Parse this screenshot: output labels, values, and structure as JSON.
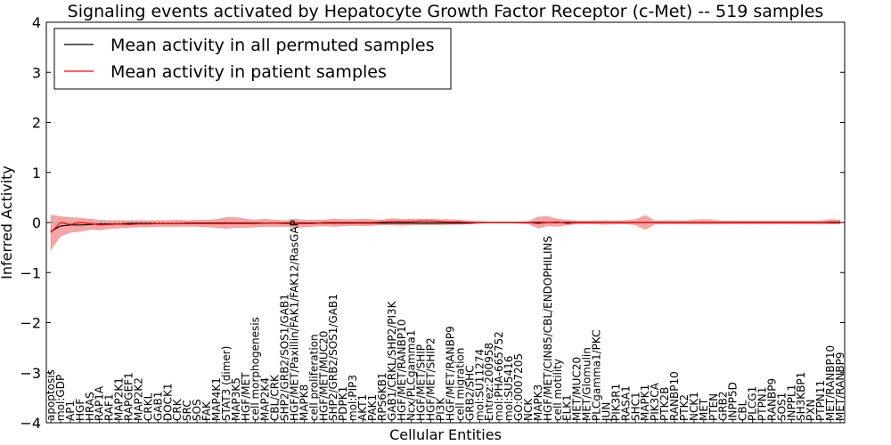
{
  "chart_data": {
    "type": "line",
    "title": "Signaling events activated by Hepatocyte Growth Factor Receptor (c-Met) -- 519 samples",
    "xlabel": "Cellular Entities",
    "ylabel": "Inferred Activity",
    "ylim": [
      -4,
      4
    ],
    "yticks": [
      "4",
      "3",
      "2",
      "1",
      "0",
      "−1",
      "−2",
      "−3",
      "−4"
    ],
    "legend": {
      "placement": "top-left",
      "entries": [
        "Mean activity in all permuted samples",
        "Mean activity in patient samples"
      ]
    },
    "colors": {
      "permuted": "#000000",
      "patient": "#ff0000",
      "band": "#f08080",
      "zero_line": "#808080"
    },
    "categories": [
      "apoptosis",
      "mol:GDP",
      "AP1",
      "HGF",
      "HRAS",
      "RAP1A",
      "RAF1",
      "MAP2K1",
      "RAPGEF1",
      "MAP2K2",
      "CRKL",
      "GAB1",
      "DOCK1",
      "CRK",
      "SRC",
      "SOS",
      "FAK",
      "MAP4K1",
      "STAT3 (dimer)",
      "MAP3K5",
      "HGF/MET",
      "cell morphogenesis",
      "MAP2K4",
      "CBL/CRK",
      "SHP2/GRB2/SOS1/GAB1",
      "HGF/MET/Paxillin/FAK1/FAK12/RasGAP",
      "MAPK8",
      "cell proliferation",
      "HGF/MET/MUC20",
      "SHP2/GRB2/SOS1/GAB1",
      "PDPK1",
      "mol:PIP3",
      "AKT1",
      "PAK1",
      "RPS6KB1",
      "GAB1/CRKL/SHP2/PI3K",
      "HGF/MET/RANBP10",
      "Ncx/PLCgamma1",
      "HGF/MET/SHIP",
      "HGF/MET/SHIP2",
      "PI3K",
      "HGF/MET/RANBP9",
      "cell migration",
      "GRB2/SHC",
      "mol:SU11274",
      "Entrez:200958",
      "mol:PHA-665752",
      "mol:SU5416",
      "GO:0007205",
      "NCK",
      "MAPK3",
      "HGF/MET/CIN85/CBL/ENDOPHILINS",
      "cell motility",
      "ELK1",
      "MET/MUC20",
      "MET/Glomulin",
      "PLCgamma1/PKC",
      "JUN",
      "PIK3R1",
      "RASA1",
      "SHC1",
      "MAPK1",
      "PIK3CA",
      "PTK2B",
      "RANBP10",
      "PTK2",
      "NCK1",
      "MET",
      "PTEN",
      "GRB2",
      "INPP5D",
      "CBL",
      "PLCG1",
      "PTPN1",
      "RANBP9",
      "SOS1",
      "INPPL1",
      "SH3KBP1",
      "PXN",
      "PTPN11",
      "MET/RANBP10",
      "MET/RANBP9"
    ],
    "series": [
      {
        "name": "Mean activity in all permuted samples",
        "values": [
          -0.18,
          -0.07,
          -0.05,
          -0.05,
          -0.04,
          -0.03,
          -0.03,
          -0.03,
          -0.02,
          -0.02,
          -0.02,
          -0.02,
          -0.02,
          -0.02,
          -0.01,
          -0.01,
          -0.01,
          -0.01,
          -0.01,
          -0.01,
          -0.01,
          -0.01,
          -0.01,
          -0.01,
          -0.01,
          -0.01,
          -0.01,
          -0.01,
          -0.01,
          -0.01,
          -0.01,
          -0.01,
          -0.01,
          -0.01,
          -0.01,
          -0.01,
          -0.01,
          -0.01,
          -0.01,
          -0.01,
          -0.01,
          -0.01,
          -0.01,
          -0.01,
          0,
          0,
          0,
          0,
          0,
          0,
          0,
          0,
          0,
          0,
          0,
          0,
          0,
          0,
          0,
          0,
          0,
          0,
          0,
          0,
          0,
          0,
          0,
          0,
          0,
          0,
          0,
          0,
          0,
          0,
          0,
          0,
          0,
          0,
          0,
          0,
          0,
          0
        ]
      },
      {
        "name": "Mean activity in patient samples",
        "values": [
          -0.2,
          0.0,
          -0.04,
          0.0,
          -0.02,
          -0.05,
          -0.04,
          -0.03,
          -0.04,
          -0.03,
          -0.03,
          -0.02,
          -0.02,
          -0.02,
          -0.02,
          -0.02,
          -0.02,
          -0.02,
          -0.02,
          -0.02,
          -0.02,
          -0.02,
          -0.01,
          -0.01,
          -0.02,
          -0.02,
          -0.02,
          -0.02,
          0.0,
          0.0,
          0.0,
          0.0,
          0.0,
          0.0,
          0.01,
          0.02,
          0.02,
          0.02,
          0.03,
          0.03,
          0.02,
          0.01,
          0.01,
          0.0,
          0.0,
          0.0,
          0.0,
          0.0,
          0.0,
          0.0,
          -0.02,
          0.0,
          0.01,
          -0.02,
          0.0,
          0.0,
          0.0,
          0.0,
          0.0,
          0.0,
          0.0,
          0.0,
          0.0,
          0.0,
          0.0,
          0.0,
          0.0,
          0.0,
          0.0,
          0.0,
          0.0,
          0.0,
          0.0,
          0.0,
          0.0,
          0.0,
          0.0,
          0.0,
          0.0,
          0.0,
          0.01,
          0.01
        ]
      }
    ],
    "band": {
      "upper": [
        0.15,
        0.12,
        0.1,
        0.09,
        0.07,
        0.05,
        0.04,
        0.04,
        0.04,
        0.04,
        0.04,
        0.04,
        0.04,
        0.05,
        0.04,
        0.05,
        0.05,
        0.06,
        0.1,
        0.1,
        0.07,
        0.05,
        0.07,
        0.05,
        0.04,
        0.07,
        0.05,
        0.05,
        0.05,
        0.07,
        0.06,
        0.06,
        0.07,
        0.06,
        0.05,
        0.08,
        0.06,
        0.07,
        0.07,
        0.07,
        0.06,
        0.06,
        0.05,
        0.03,
        0.02,
        0.01,
        0.01,
        0.01,
        0.01,
        0.02,
        0.11,
        0.12,
        0.07,
        0.05,
        0.03,
        0.03,
        0.03,
        0.04,
        0.03,
        0.04,
        0.06,
        0.14,
        0.03,
        0.04,
        0.04,
        0.03,
        0.05,
        0.06,
        0.05,
        0.03,
        0.03,
        0.03,
        0.03,
        0.03,
        0.03,
        0.03,
        0.03,
        0.03,
        0.03,
        0.03,
        0.06,
        0.05
      ],
      "lower": [
        -0.55,
        -0.27,
        -0.2,
        -0.18,
        -0.14,
        -0.15,
        -0.12,
        -0.11,
        -0.1,
        -0.09,
        -0.09,
        -0.08,
        -0.08,
        -0.08,
        -0.08,
        -0.08,
        -0.09,
        -0.1,
        -0.12,
        -0.1,
        -0.1,
        -0.09,
        -0.08,
        -0.08,
        -0.08,
        -0.1,
        -0.09,
        -0.08,
        -0.07,
        -0.08,
        -0.07,
        -0.06,
        -0.07,
        -0.06,
        -0.05,
        -0.05,
        -0.06,
        -0.05,
        -0.05,
        -0.05,
        -0.05,
        -0.04,
        -0.04,
        -0.03,
        -0.02,
        -0.01,
        -0.01,
        -0.01,
        -0.02,
        -0.03,
        -0.11,
        -0.07,
        -0.08,
        -0.05,
        -0.03,
        -0.03,
        -0.03,
        -0.04,
        -0.03,
        -0.03,
        -0.05,
        -0.14,
        -0.03,
        -0.03,
        -0.03,
        -0.03,
        -0.03,
        -0.03,
        -0.03,
        -0.03,
        -0.03,
        -0.03,
        -0.03,
        -0.03,
        -0.03,
        -0.03,
        -0.03,
        -0.03,
        -0.03,
        -0.03,
        -0.03,
        -0.03
      ]
    }
  }
}
